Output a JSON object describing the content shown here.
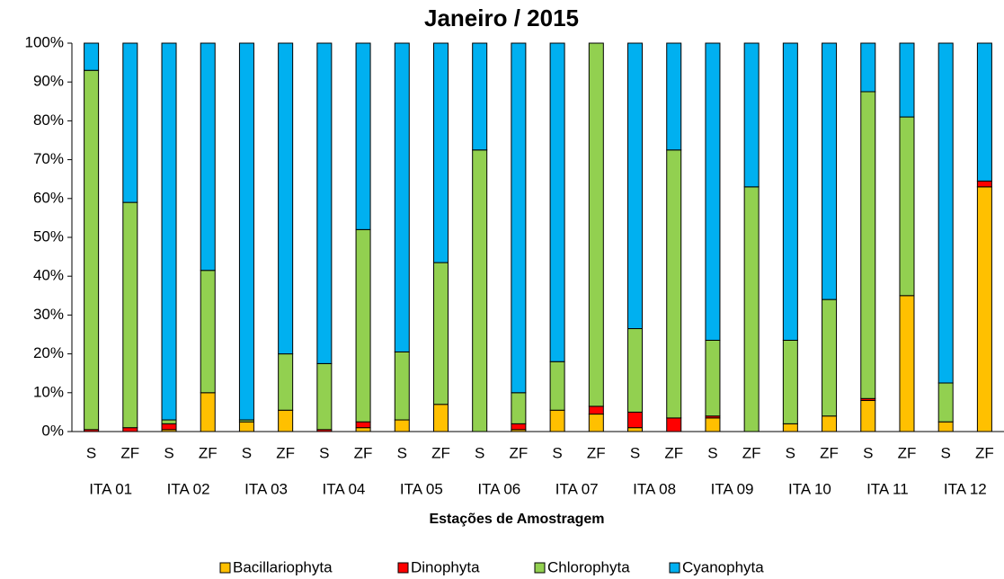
{
  "chart_data": {
    "type": "stacked_bar_percent",
    "title": "Janeiro / 2015",
    "x_label": "Estações de Amostragem",
    "categories": [
      "S",
      "ZF",
      "S",
      "ZF",
      "S",
      "ZF",
      "S",
      "ZF",
      "S",
      "ZF",
      "S",
      "ZF",
      "S",
      "ZF",
      "S",
      "ZF",
      "S",
      "ZF",
      "S",
      "ZF",
      "S",
      "ZF",
      "S",
      "ZF"
    ],
    "groups": [
      "ITA 01",
      "ITA 02",
      "ITA 03",
      "ITA 04",
      "ITA 05",
      "ITA 06",
      "ITA 07",
      "ITA 08",
      "ITA 09",
      "ITA 10",
      "ITA 11",
      "ITA 12"
    ],
    "ylim": [
      0,
      100
    ],
    "yticks": [
      {
        "value": 0,
        "label": "0%"
      },
      {
        "value": 10,
        "label": "10%"
      },
      {
        "value": 20,
        "label": "20%"
      },
      {
        "value": 30,
        "label": "30%"
      },
      {
        "value": 40,
        "label": "40%"
      },
      {
        "value": 50,
        "label": "50%"
      },
      {
        "value": 60,
        "label": "60%"
      },
      {
        "value": 70,
        "label": "70%"
      },
      {
        "value": 80,
        "label": "80%"
      },
      {
        "value": 90,
        "label": "90%"
      },
      {
        "value": 100,
        "label": "100%"
      }
    ],
    "legend": "bottom",
    "series": [
      {
        "name": "Bacillariophyta",
        "color": "#ffc000",
        "values": [
          0,
          0,
          0.5,
          10,
          2.5,
          5.5,
          0,
          1,
          3,
          7,
          0,
          0.5,
          5.5,
          4.5,
          1,
          0,
          3.5,
          0,
          2,
          4,
          8,
          35,
          2.5,
          63
        ]
      },
      {
        "name": "Dinophyta",
        "color": "#ff0000",
        "values": [
          0.5,
          1,
          1.5,
          0,
          0,
          0,
          0.5,
          1.5,
          0,
          0,
          0,
          1.5,
          0,
          2,
          4,
          3.5,
          0.5,
          0,
          0,
          0,
          0.5,
          0,
          0,
          1.5
        ]
      },
      {
        "name": "Chlorophyta",
        "color": "#92d050",
        "values": [
          92.5,
          58,
          1,
          31.5,
          0.5,
          14.5,
          17,
          49.5,
          17.5,
          36.5,
          72.5,
          8,
          12.5,
          93.5,
          21.5,
          69,
          19.5,
          63,
          21.5,
          30,
          79,
          46,
          10,
          0
        ]
      },
      {
        "name": "Cyanophyta",
        "color": "#00b0f0",
        "values": [
          7,
          41,
          97,
          58.5,
          97,
          80,
          82.5,
          48,
          79.5,
          56.5,
          27.5,
          90,
          82,
          0,
          73.5,
          27.5,
          76.5,
          37,
          76.5,
          66,
          12.5,
          19,
          87.5,
          35.5
        ]
      }
    ]
  }
}
